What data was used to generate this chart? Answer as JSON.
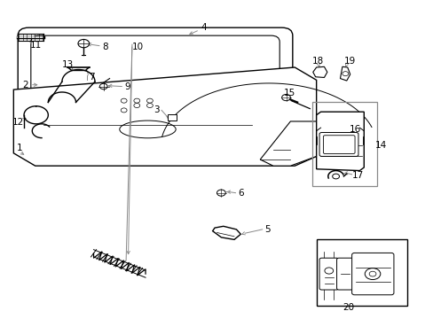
{
  "bg_color": "#ffffff",
  "line_color": "#000000",
  "gray_color": "#888888",
  "fig_width": 4.89,
  "fig_height": 3.6,
  "dpi": 100
}
